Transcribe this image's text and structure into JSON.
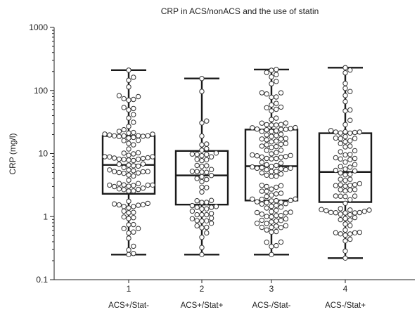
{
  "chart_data": {
    "type": "box",
    "title": "CRP in ACS/nonACS and the use of statin",
    "ylabel": "CRP (mg/l)",
    "xlabel": "",
    "y_scale": "log",
    "ylim": [
      0.1,
      1000
    ],
    "y_ticks": [
      0.1,
      1,
      10,
      100,
      1000
    ],
    "y_tick_labels": [
      "0.1",
      "1",
      "10",
      "100",
      "1000"
    ],
    "x_tick_labels": [
      "1",
      "2",
      "3",
      "4"
    ],
    "categories": [
      "ACS+/Stat-",
      "ACS+/Stat+",
      "ACS-/Stat-",
      "ACS-/Stat+"
    ],
    "boxes": [
      {
        "category": "ACS+/Stat-",
        "min": 0.25,
        "q1": 2.3,
        "median": 6.6,
        "q3": 19,
        "max": 210
      },
      {
        "category": "ACS+/Stat+",
        "min": 0.25,
        "q1": 1.55,
        "median": 4.5,
        "q3": 11,
        "max": 155
      },
      {
        "category": "ACS-/Stat-",
        "min": 0.25,
        "q1": 1.8,
        "median": 6.3,
        "q3": 24,
        "max": 215
      },
      {
        "category": "ACS-/Stat+",
        "min": 0.22,
        "q1": 1.7,
        "median": 5.1,
        "q3": 21,
        "max": 230
      }
    ],
    "points": [
      {
        "category": "ACS+/Stat-",
        "n": 110,
        "seed": 11
      },
      {
        "category": "ACS+/Stat+",
        "n": 62,
        "seed": 23
      },
      {
        "category": "ACS-/Stat-",
        "n": 140,
        "seed": 37
      },
      {
        "category": "ACS-/Stat+",
        "n": 95,
        "seed": 53
      }
    ],
    "grid": false,
    "legend": "none",
    "colors": {
      "box": "#1a1a1a",
      "point_fill": "#ffffff",
      "point_stroke": "#333333"
    }
  }
}
